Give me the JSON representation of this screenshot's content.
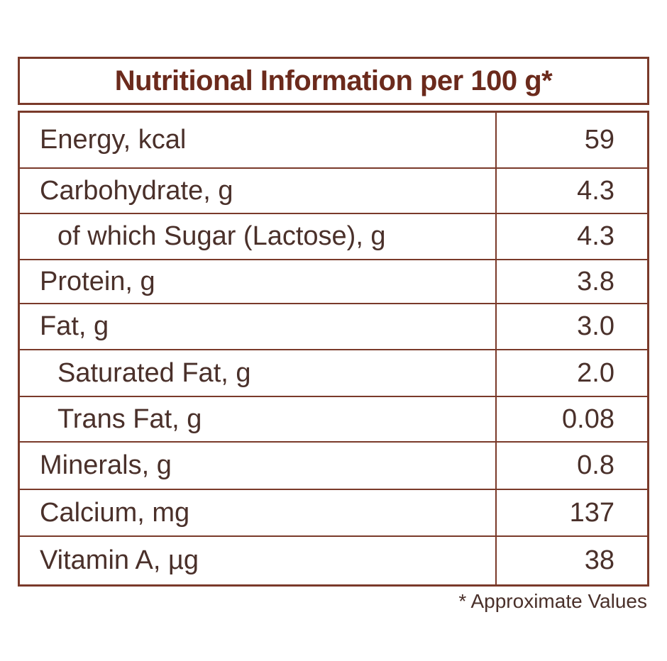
{
  "title": "Nutritional Information per 100 g*",
  "table": {
    "rows": [
      {
        "label": "Energy, kcal",
        "value": "59"
      },
      {
        "label": "Carbohydrate, g",
        "value": "4.3"
      },
      {
        "label": "of which Sugar (Lactose), g",
        "value": "4.3",
        "indent": true
      },
      {
        "label": "Protein, g",
        "value": "3.8"
      },
      {
        "label": "Fat, g",
        "value": "3.0"
      },
      {
        "label": "Saturated Fat, g",
        "value": "2.0",
        "indent": true
      },
      {
        "label": "Trans Fat, g",
        "value": "0.08",
        "indent": true
      },
      {
        "label": "Minerals, g",
        "value": "0.8"
      },
      {
        "label": "Calcium, mg",
        "value": "137"
      },
      {
        "label": "Vitamin A, µg",
        "value": "38"
      }
    ]
  },
  "footnote": "* Approximate Values"
}
